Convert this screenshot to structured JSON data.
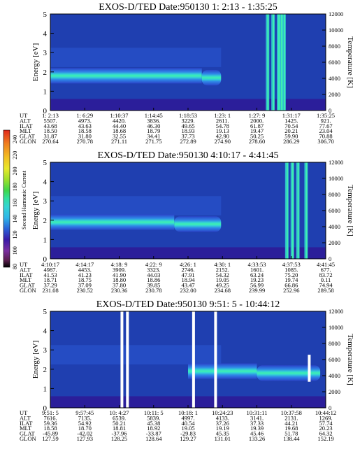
{
  "chart_data": {
    "type": "heatmap",
    "colorbar": {
      "label": "Second Harmonic Current",
      "ticks": [
        "80",
        "100",
        "120",
        "140",
        "160",
        "180",
        "200",
        "220",
        "240"
      ],
      "colors": [
        "#000000",
        "#5a1e4e",
        "#7a2ea0",
        "#3a1aa8",
        "#1e3aa8",
        "#2a62d8",
        "#2f86e8",
        "#2eb5e8",
        "#33d4d4",
        "#30e0a0",
        "#3ed64a",
        "#9ee02a",
        "#e8e82a",
        "#f2c020",
        "#f07f1e",
        "#e0281c"
      ]
    },
    "panels": [
      {
        "title": "EXOS-D/TED   Date:950130   1: 2:13 - 1:35:25",
        "ylabel": "Energy [eV]",
        "y2label": "Temperature [K]",
        "yticks": [
          "0",
          "1",
          "2",
          "3",
          "4",
          "5"
        ],
        "y2ticks": [
          "0",
          "2000",
          "4000",
          "6000",
          "8000",
          "10000",
          "12000"
        ],
        "table": {
          "row_labels": [
            "UT",
            "ALT",
            "ILAT",
            "MLT",
            "GLAT",
            "GLON"
          ],
          "columns": [
            [
              "1: 2:13",
              "5507.",
              "43.68",
              "18.50",
              "31.87",
              "270.64"
            ],
            [
              "1: 6:29",
              "4973.",
              "43.63",
              "18.58",
              "31.80",
              "270.78"
            ],
            [
              "1:10:37",
              "4420.",
              "44.40",
              "18.68",
              "32.55",
              "271.11"
            ],
            [
              "1:14:45",
              "3836.",
              "46.30",
              "18.79",
              "34.41",
              "271.75"
            ],
            [
              "1:18:53",
              "3229.",
              "49.65",
              "18.93",
              "37.73",
              "272.89"
            ],
            [
              "1:23: 1",
              "2611.",
              "54.78",
              "19.13",
              "42.90",
              "274.90"
            ],
            [
              "1:27: 9",
              "2000.",
              "61.87",
              "19.47",
              "50.25",
              "278.60"
            ],
            [
              "1:31:17",
              "1425.",
              "70.54",
              "20.21",
              "59.90",
              "286.29"
            ],
            [
              "1:35:25",
              "921.",
              "77.67",
              "23.04",
              "70.88",
              "306.70"
            ]
          ]
        },
        "bands": [
          {
            "x0": 0.0,
            "x1": 0.55,
            "e": 1.8
          },
          {
            "x0": 0.55,
            "x1": 0.62,
            "e": 1.7
          }
        ],
        "spikes": [
          0.79,
          0.81,
          0.83,
          0.84,
          0.85
        ]
      },
      {
        "title": "EXOS-D/TED   Date:950130   4:10:17 - 4:41:45",
        "ylabel": "Energy [eV]",
        "y2label": "Temperature [K]",
        "yticks": [
          "0",
          "1",
          "2",
          "3",
          "4",
          "5"
        ],
        "y2ticks": [
          "0",
          "2000",
          "4000",
          "6000",
          "8000",
          "10000",
          "12000"
        ],
        "table": {
          "row_labels": [
            "UT",
            "ALT",
            "ILAT",
            "MLT",
            "GLAT",
            "GLON"
          ],
          "columns": [
            [
              "4:10:17",
              "4987.",
              "41.53",
              "18.71",
              "37.29",
              "231.08"
            ],
            [
              "4:14:17",
              "4453.",
              "41.23",
              "18.75",
              "37.09",
              "230.52"
            ],
            [
              "4:18: 9",
              "3909.",
              "41.90",
              "18.80",
              "37.80",
              "230.36"
            ],
            [
              "4:22: 9",
              "3323.",
              "44.03",
              "18.86",
              "39.85",
              "230.78"
            ],
            [
              "4:26: 1",
              "2746.",
              "47.91",
              "18.94",
              "43.47",
              "232.00"
            ],
            [
              "4:30: 1",
              "2152.",
              "54.32",
              "19.05",
              "49.25",
              "234.68"
            ],
            [
              "4:33:53",
              "1601.",
              "63.24",
              "19.23",
              "56.99",
              "239.99"
            ],
            [
              "4:37:53",
              "1085.",
              "75.20",
              "19.74",
              "66.86",
              "252.96"
            ],
            [
              "4:41:45",
              "677.",
              "83.72",
              "0.11",
              "74.94",
              "289.58"
            ]
          ]
        },
        "bands": [
          {
            "x0": 0.0,
            "x1": 0.45,
            "e": 1.9
          },
          {
            "x0": 0.45,
            "x1": 0.62,
            "e": 1.8
          }
        ],
        "spikes": [
          0.86,
          0.88,
          0.9,
          0.93
        ]
      },
      {
        "title": "EXOS-D/TED   Date:950130   9:51: 5 - 10:44:12",
        "ylabel": "Energy [eV]",
        "y2label": "Temperature [K]",
        "yticks": [
          "0",
          "1",
          "2",
          "3",
          "4",
          "5"
        ],
        "y2ticks": [
          "0",
          "2000",
          "4000",
          "6000",
          "8000",
          "10000",
          "12000"
        ],
        "table": {
          "row_labels": [
            "UT",
            "ALT",
            "ILAT",
            "MLT",
            "GLAT",
            "GLON"
          ],
          "columns": [
            [
              "9:51: 5",
              "7616.",
              "59.36",
              "18.58",
              "-45.89",
              "127.59"
            ],
            [
              "9:57:45",
              "7135.",
              "54.92",
              "18.70",
              "-42.02",
              "127.93"
            ],
            [
              "10: 4:27",
              "6539.",
              "50.21",
              "18.81",
              "-37.96",
              "128.25"
            ],
            [
              "10:11: 5",
              "5839.",
              "45.38",
              "18.92",
              "-33.87",
              "128.64"
            ],
            [
              "10:18: 1",
              "4997.",
              "40.54",
              "19.05",
              "-29.83",
              "129.27"
            ],
            [
              "10:24:23",
              "4133.",
              "37.26",
              "19.19",
              "45.35",
              "131.01"
            ],
            [
              "10:31:11",
              "3141.",
              "37.33",
              "19.39",
              "45.46",
              "133.26"
            ],
            [
              "10:37:58",
              "2131.",
              "44.21",
              "19.68",
              "51.78",
              "138.44"
            ],
            [
              "10:44:12",
              "1269.",
              "57.74",
              "20.23",
              "64.32",
              "152.19"
            ]
          ]
        },
        "bands": [
          {
            "x0": 0.5,
            "x1": 0.75,
            "e": 1.9
          },
          {
            "x0": 0.75,
            "x1": 0.98,
            "e": 1.8
          }
        ],
        "gaps": [
          0.26,
          0.28,
          0.52,
          0.6
        ]
      }
    ]
  }
}
